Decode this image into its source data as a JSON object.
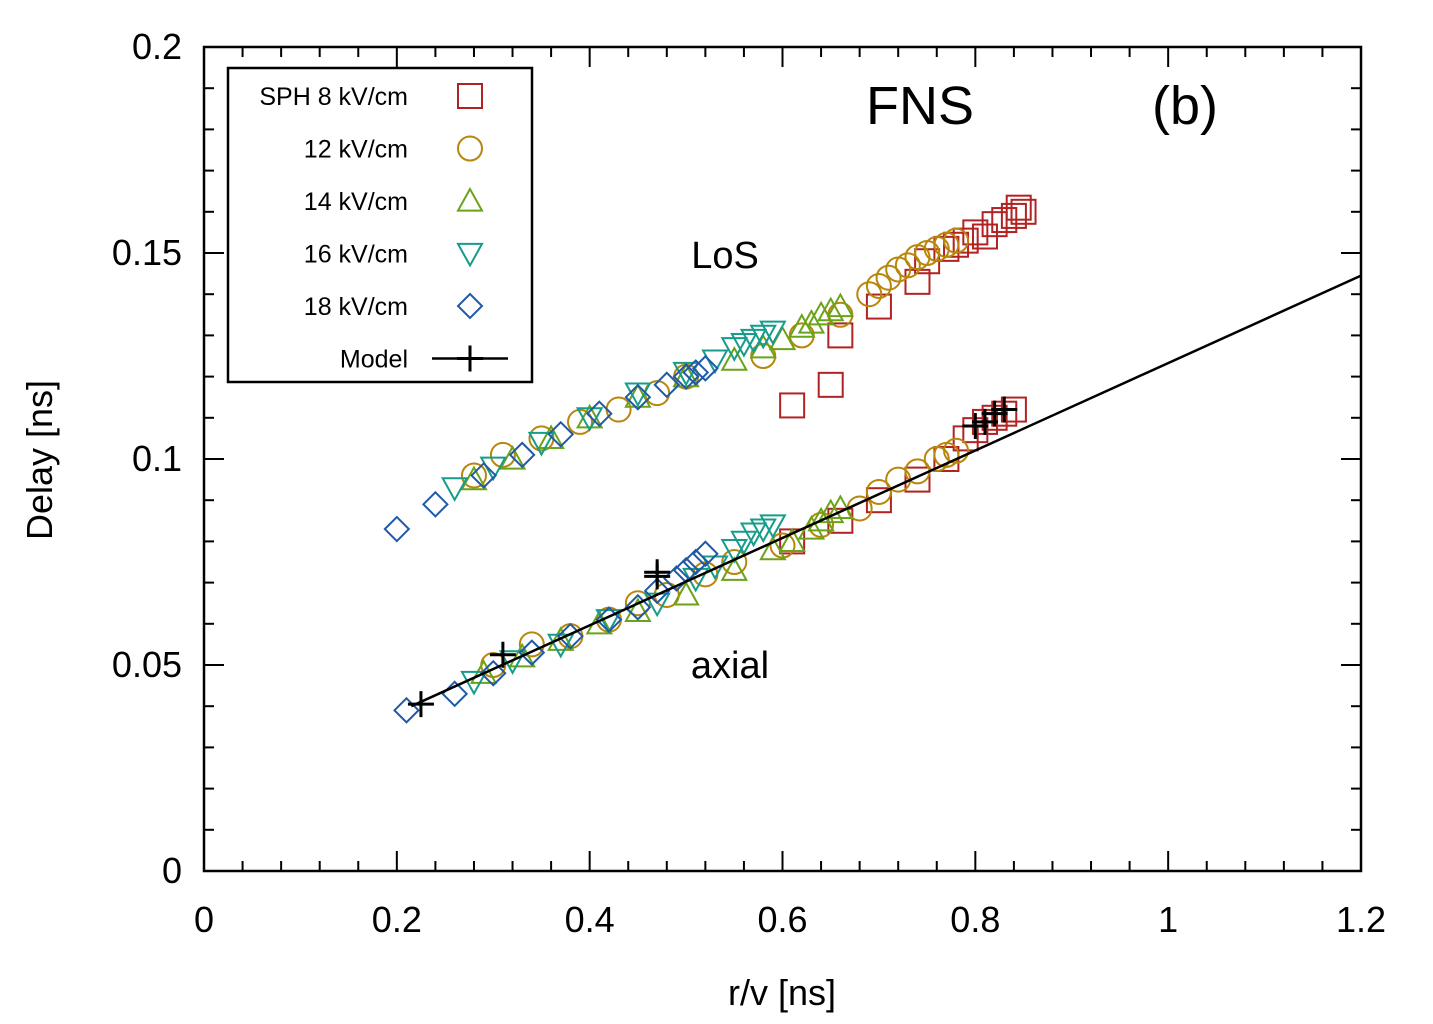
{
  "chart_data": {
    "type": "scatter",
    "title": "",
    "xlabel": "r/v [ns]",
    "ylabel": "Delay [ns]",
    "xlim": [
      0,
      1.2
    ],
    "ylim": [
      0,
      0.2
    ],
    "xticks": [
      "0",
      "0.2",
      "0.4",
      "0.6",
      "0.8",
      "1",
      "1.2"
    ],
    "xtick_values": [
      0,
      0.2,
      0.4,
      0.6,
      0.8,
      1.0,
      1.2
    ],
    "yticks": [
      "0",
      "0.05",
      "0.1",
      "0.15",
      "0.2"
    ],
    "ytick_values": [
      0,
      0.05,
      0.1,
      0.15,
      0.2
    ],
    "grid": false,
    "legend_position": "top-left",
    "annotations": {
      "method": "FNS",
      "panel": "(b)",
      "upper_group": "LoS",
      "lower_group": "axial"
    },
    "series": [
      {
        "name": "SPH 8 kV/cm",
        "legend_label": "SPH 8 kV/cm",
        "marker": "square",
        "color": "#b22222",
        "los": [
          [
            0.61,
            0.113
          ],
          [
            0.65,
            0.118
          ],
          [
            0.66,
            0.13
          ],
          [
            0.7,
            0.137
          ],
          [
            0.74,
            0.143
          ],
          [
            0.75,
            0.148
          ],
          [
            0.77,
            0.151
          ],
          [
            0.78,
            0.152
          ],
          [
            0.79,
            0.153
          ],
          [
            0.8,
            0.155
          ],
          [
            0.81,
            0.154
          ],
          [
            0.82,
            0.157
          ],
          [
            0.83,
            0.158
          ],
          [
            0.84,
            0.159
          ],
          [
            0.845,
            0.161
          ],
          [
            0.85,
            0.16
          ]
        ],
        "axial": [
          [
            0.61,
            0.08
          ],
          [
            0.66,
            0.085
          ],
          [
            0.7,
            0.09
          ],
          [
            0.74,
            0.095
          ],
          [
            0.77,
            0.1
          ],
          [
            0.79,
            0.105
          ],
          [
            0.8,
            0.107
          ],
          [
            0.81,
            0.109
          ],
          [
            0.82,
            0.11
          ],
          [
            0.83,
            0.111
          ],
          [
            0.84,
            0.112
          ]
        ]
      },
      {
        "name": "12 kV/cm",
        "legend_label": "12 kV/cm",
        "marker": "circle",
        "color": "#b8860b",
        "los": [
          [
            0.28,
            0.096
          ],
          [
            0.31,
            0.101
          ],
          [
            0.35,
            0.105
          ],
          [
            0.39,
            0.109
          ],
          [
            0.43,
            0.112
          ],
          [
            0.47,
            0.116
          ],
          [
            0.5,
            0.12
          ],
          [
            0.58,
            0.125
          ],
          [
            0.62,
            0.13
          ],
          [
            0.66,
            0.135
          ],
          [
            0.69,
            0.14
          ],
          [
            0.7,
            0.142
          ],
          [
            0.71,
            0.144
          ],
          [
            0.72,
            0.146
          ],
          [
            0.73,
            0.147
          ],
          [
            0.74,
            0.149
          ],
          [
            0.75,
            0.15
          ],
          [
            0.76,
            0.151
          ],
          [
            0.77,
            0.152
          ],
          [
            0.78,
            0.153
          ]
        ],
        "axial": [
          [
            0.3,
            0.05
          ],
          [
            0.34,
            0.055
          ],
          [
            0.38,
            0.057
          ],
          [
            0.42,
            0.061
          ],
          [
            0.45,
            0.065
          ],
          [
            0.48,
            0.067
          ],
          [
            0.52,
            0.072
          ],
          [
            0.55,
            0.075
          ],
          [
            0.6,
            0.079
          ],
          [
            0.64,
            0.084
          ],
          [
            0.68,
            0.088
          ],
          [
            0.7,
            0.092
          ],
          [
            0.72,
            0.095
          ],
          [
            0.74,
            0.097
          ],
          [
            0.76,
            0.1
          ],
          [
            0.77,
            0.101
          ],
          [
            0.78,
            0.102
          ]
        ]
      },
      {
        "name": "14 kV/cm",
        "legend_label": "14 kV/cm",
        "marker": "triangle-up",
        "color": "#6aa31a",
        "los": [
          [
            0.28,
            0.095
          ],
          [
            0.32,
            0.1
          ],
          [
            0.36,
            0.105
          ],
          [
            0.4,
            0.11
          ],
          [
            0.45,
            0.115
          ],
          [
            0.5,
            0.12
          ],
          [
            0.55,
            0.124
          ],
          [
            0.58,
            0.127
          ],
          [
            0.6,
            0.129
          ],
          [
            0.62,
            0.132
          ],
          [
            0.63,
            0.133
          ],
          [
            0.64,
            0.135
          ],
          [
            0.65,
            0.136
          ],
          [
            0.66,
            0.137
          ]
        ],
        "axial": [
          [
            0.29,
            0.048
          ],
          [
            0.33,
            0.052
          ],
          [
            0.37,
            0.056
          ],
          [
            0.41,
            0.06
          ],
          [
            0.45,
            0.063
          ],
          [
            0.5,
            0.067
          ],
          [
            0.55,
            0.073
          ],
          [
            0.59,
            0.078
          ],
          [
            0.61,
            0.08
          ],
          [
            0.63,
            0.083
          ],
          [
            0.64,
            0.085
          ],
          [
            0.65,
            0.087
          ],
          [
            0.66,
            0.088
          ]
        ]
      },
      {
        "name": "16 kV/cm",
        "legend_label": "16 kV/cm",
        "marker": "triangle-down",
        "color": "#159c8a",
        "los": [
          [
            0.26,
            0.093
          ],
          [
            0.3,
            0.098
          ],
          [
            0.35,
            0.104
          ],
          [
            0.4,
            0.11
          ],
          [
            0.45,
            0.116
          ],
          [
            0.5,
            0.121
          ],
          [
            0.53,
            0.124
          ],
          [
            0.55,
            0.127
          ],
          [
            0.56,
            0.128
          ],
          [
            0.57,
            0.129
          ],
          [
            0.58,
            0.13
          ],
          [
            0.59,
            0.131
          ]
        ],
        "axial": [
          [
            0.28,
            0.046
          ],
          [
            0.32,
            0.051
          ],
          [
            0.37,
            0.055
          ],
          [
            0.42,
            0.061
          ],
          [
            0.47,
            0.065
          ],
          [
            0.51,
            0.071
          ],
          [
            0.53,
            0.074
          ],
          [
            0.55,
            0.078
          ],
          [
            0.56,
            0.08
          ],
          [
            0.57,
            0.082
          ],
          [
            0.58,
            0.083
          ],
          [
            0.59,
            0.084
          ]
        ]
      },
      {
        "name": "18 kV/cm",
        "legend_label": "18 kV/cm",
        "marker": "diamond",
        "color": "#1f5aa8",
        "los": [
          [
            0.2,
            0.083
          ],
          [
            0.24,
            0.089
          ],
          [
            0.29,
            0.096
          ],
          [
            0.33,
            0.101
          ],
          [
            0.37,
            0.106
          ],
          [
            0.41,
            0.111
          ],
          [
            0.45,
            0.115
          ],
          [
            0.48,
            0.118
          ],
          [
            0.5,
            0.12
          ],
          [
            0.51,
            0.121
          ],
          [
            0.52,
            0.122
          ]
        ],
        "axial": [
          [
            0.21,
            0.039
          ],
          [
            0.26,
            0.043
          ],
          [
            0.3,
            0.048
          ],
          [
            0.34,
            0.053
          ],
          [
            0.38,
            0.057
          ],
          [
            0.42,
            0.061
          ],
          [
            0.45,
            0.064
          ],
          [
            0.47,
            0.068
          ],
          [
            0.49,
            0.071
          ],
          [
            0.5,
            0.073
          ],
          [
            0.51,
            0.075
          ],
          [
            0.52,
            0.077
          ]
        ]
      },
      {
        "name": "Model",
        "legend_label": "Model",
        "marker": "plus-line",
        "color": "#000000",
        "line": [
          [
            0.215,
            0.04
          ],
          [
            1.2,
            0.1445
          ]
        ],
        "points": [
          [
            0.225,
            0.0405
          ],
          [
            0.31,
            0.0525
          ],
          [
            0.47,
            0.0725
          ],
          [
            0.47,
            0.0715
          ],
          [
            0.8,
            0.108
          ],
          [
            0.81,
            0.109
          ],
          [
            0.82,
            0.111
          ],
          [
            0.83,
            0.112
          ]
        ]
      }
    ]
  }
}
